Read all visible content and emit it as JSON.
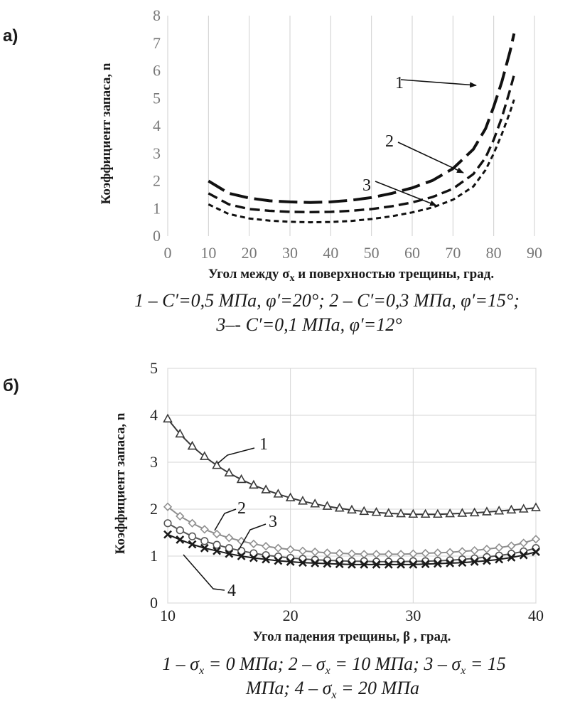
{
  "chart_data": [
    {
      "type": "line",
      "panel_label": "а)",
      "title": "",
      "xlabel_parts": [
        "Угол между ",
        "σ",
        "x",
        " и поверхностью трещины, град."
      ],
      "ylabel": "Коэффициент  запаса, n",
      "xlim": [
        0,
        90
      ],
      "ylim": [
        0,
        8
      ],
      "xticks": [
        0,
        10,
        20,
        30,
        40,
        50,
        60,
        70,
        80,
        90
      ],
      "yticks": [
        0,
        1,
        2,
        3,
        4,
        5,
        6,
        7,
        8
      ],
      "grid": "vertical",
      "x": [
        10,
        15,
        20,
        25,
        30,
        35,
        40,
        45,
        50,
        55,
        60,
        65,
        70,
        75,
        78,
        80,
        82,
        84,
        85
      ],
      "series": [
        {
          "name": "1",
          "values": [
            2.0,
            1.55,
            1.38,
            1.28,
            1.24,
            1.22,
            1.24,
            1.3,
            1.4,
            1.55,
            1.75,
            2.02,
            2.45,
            3.15,
            3.9,
            4.7,
            5.6,
            6.7,
            7.35
          ]
        },
        {
          "name": "2",
          "values": [
            1.55,
            1.15,
            0.98,
            0.92,
            0.88,
            0.87,
            0.88,
            0.92,
            0.98,
            1.08,
            1.22,
            1.42,
            1.72,
            2.25,
            2.85,
            3.5,
            4.3,
            5.3,
            5.85
          ]
        },
        {
          "name": "3",
          "values": [
            1.15,
            0.8,
            0.64,
            0.56,
            0.52,
            0.5,
            0.51,
            0.55,
            0.62,
            0.72,
            0.86,
            1.04,
            1.32,
            1.8,
            2.4,
            3.0,
            3.7,
            4.5,
            4.95
          ]
        }
      ],
      "annotations": [
        {
          "label": "1",
          "points_to_series": "1"
        },
        {
          "label": "2",
          "points_to_series": "2"
        },
        {
          "label": "3",
          "points_to_series": "3"
        }
      ],
      "caption_lines": [
        "1 – C′=0,5 МПа, φ′=20°; 2 – C′=0,3 МПа, φ′=15°;",
        "3–- C′=0,1 МПа, φ′=12°"
      ]
    },
    {
      "type": "line",
      "panel_label": "б)",
      "title": "",
      "xlabel": "Угол падения трещины, β , град.",
      "ylabel": "Коэффициент  запаса, n",
      "xlim": [
        10,
        40
      ],
      "ylim": [
        0,
        5
      ],
      "xticks": [
        10,
        20,
        30,
        40
      ],
      "yticks": [
        0,
        1,
        2,
        3,
        4,
        5
      ],
      "grid": "both",
      "x": [
        10,
        11,
        12,
        13,
        14,
        15,
        16,
        17,
        18,
        19,
        20,
        21,
        22,
        23,
        24,
        25,
        26,
        27,
        28,
        29,
        30,
        31,
        32,
        33,
        34,
        35,
        36,
        37,
        38,
        39,
        40
      ],
      "series": [
        {
          "name": "1",
          "marker": "triangle",
          "values": [
            3.92,
            3.6,
            3.34,
            3.12,
            2.93,
            2.77,
            2.63,
            2.51,
            2.41,
            2.32,
            2.24,
            2.17,
            2.11,
            2.06,
            2.02,
            1.98,
            1.95,
            1.93,
            1.91,
            1.9,
            1.89,
            1.89,
            1.89,
            1.9,
            1.91,
            1.92,
            1.94,
            1.96,
            1.98,
            2.0,
            2.03
          ]
        },
        {
          "name": "2",
          "marker": "diamond",
          "values": [
            2.05,
            1.85,
            1.7,
            1.57,
            1.47,
            1.39,
            1.32,
            1.26,
            1.21,
            1.17,
            1.14,
            1.11,
            1.09,
            1.07,
            1.06,
            1.05,
            1.04,
            1.04,
            1.04,
            1.04,
            1.05,
            1.06,
            1.07,
            1.08,
            1.1,
            1.12,
            1.15,
            1.18,
            1.22,
            1.28,
            1.36
          ]
        },
        {
          "name": "3",
          "marker": "circle",
          "values": [
            1.7,
            1.55,
            1.42,
            1.32,
            1.24,
            1.17,
            1.11,
            1.06,
            1.02,
            0.99,
            0.96,
            0.94,
            0.92,
            0.91,
            0.9,
            0.89,
            0.89,
            0.88,
            0.88,
            0.88,
            0.89,
            0.89,
            0.9,
            0.91,
            0.93,
            0.95,
            0.98,
            1.01,
            1.05,
            1.1,
            1.17
          ]
        },
        {
          "name": "4",
          "marker": "x",
          "values": [
            1.46,
            1.35,
            1.25,
            1.17,
            1.11,
            1.05,
            1.0,
            0.96,
            0.93,
            0.9,
            0.88,
            0.86,
            0.85,
            0.84,
            0.83,
            0.82,
            0.82,
            0.82,
            0.82,
            0.82,
            0.82,
            0.83,
            0.84,
            0.85,
            0.86,
            0.88,
            0.9,
            0.93,
            0.97,
            1.02,
            1.09
          ]
        }
      ],
      "annotations": [
        {
          "label": "1",
          "points_to_series": "1"
        },
        {
          "label": "2",
          "points_to_series": "2"
        },
        {
          "label": "3",
          "points_to_series": "3"
        },
        {
          "label": "4",
          "points_to_series": "4"
        }
      ],
      "caption_lines": [
        "1 – σ",
        "x",
        " = 0 МПа; 2 – σ",
        "x",
        " = 10 МПа; 3 – σ",
        "x",
        " = 15",
        "МПа; 4 – σ",
        "x",
        " = 20 МПа"
      ]
    }
  ]
}
